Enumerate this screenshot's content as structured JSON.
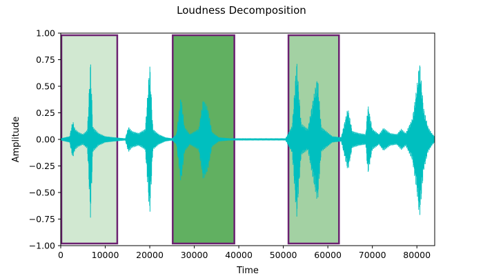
{
  "chart_data": {
    "type": "line",
    "title": "Loudness Decomposition",
    "xlabel": "Time",
    "ylabel": "Amplitude",
    "xlim": [
      0,
      84000
    ],
    "ylim": [
      -1.0,
      1.0
    ],
    "xticks": [
      0,
      10000,
      20000,
      30000,
      40000,
      50000,
      60000,
      70000,
      80000
    ],
    "xtick_labels": [
      "0",
      "10000",
      "20000",
      "30000",
      "40000",
      "50000",
      "60000",
      "70000",
      "80000"
    ],
    "yticks": [
      1.0,
      0.75,
      0.5,
      0.25,
      0.0,
      -0.25,
      -0.5,
      -0.75,
      -1.0
    ],
    "ytick_labels": [
      "1.00",
      "0.75",
      "0.50",
      "0.25",
      "0.00",
      "−0.25",
      "−0.50",
      "−0.75",
      "−1.00"
    ],
    "grid": false,
    "legend": null,
    "colors": {
      "waveform": "#00bfbf",
      "region_border": "#6b2170",
      "region_light": "#d1e8d1",
      "region_dark": "#61b061",
      "region_medium": "#a3d1a3"
    },
    "regions": [
      {
        "x_start": 0,
        "x_end": 12700,
        "y_min": -0.98,
        "y_max": 0.98,
        "shade": "light"
      },
      {
        "x_start": 25000,
        "x_end": 39000,
        "y_min": -0.98,
        "y_max": 0.98,
        "shade": "dark"
      },
      {
        "x_start": 51000,
        "x_end": 62500,
        "y_min": -0.98,
        "y_max": 0.98,
        "shade": "medium"
      }
    ],
    "waveform_envelope": [
      [
        0,
        0.01
      ],
      [
        2000,
        0.03
      ],
      [
        2700,
        0.18
      ],
      [
        3200,
        0.1
      ],
      [
        4000,
        0.07
      ],
      [
        5000,
        0.05
      ],
      [
        6000,
        0.09
      ],
      [
        6700,
        0.75
      ],
      [
        7200,
        0.12
      ],
      [
        8500,
        0.06
      ],
      [
        10000,
        0.03
      ],
      [
        12000,
        0.02
      ],
      [
        14500,
        0.01
      ],
      [
        15200,
        0.12
      ],
      [
        16000,
        0.08
      ],
      [
        17500,
        0.06
      ],
      [
        19000,
        0.1
      ],
      [
        20000,
        0.73
      ],
      [
        20700,
        0.1
      ],
      [
        22000,
        0.05
      ],
      [
        23500,
        0.02
      ],
      [
        25000,
        0.01
      ],
      [
        26000,
        0.05
      ],
      [
        27000,
        0.42
      ],
      [
        27800,
        0.12
      ],
      [
        29000,
        0.05
      ],
      [
        31000,
        0.1
      ],
      [
        32000,
        0.38
      ],
      [
        33000,
        0.3
      ],
      [
        34000,
        0.07
      ],
      [
        35500,
        0.02
      ],
      [
        38000,
        0.01
      ],
      [
        41000,
        0.01
      ],
      [
        46000,
        0.01
      ],
      [
        50500,
        0.01
      ],
      [
        52000,
        0.13
      ],
      [
        53000,
        0.75
      ],
      [
        54000,
        0.15
      ],
      [
        55500,
        0.1
      ],
      [
        57000,
        0.45
      ],
      [
        57700,
        0.6
      ],
      [
        58500,
        0.12
      ],
      [
        61000,
        0.03
      ],
      [
        63000,
        0.02
      ],
      [
        64500,
        0.3
      ],
      [
        65500,
        0.08
      ],
      [
        67000,
        0.06
      ],
      [
        68500,
        0.05
      ],
      [
        69000,
        0.33
      ],
      [
        70000,
        0.1
      ],
      [
        71500,
        0.05
      ],
      [
        72500,
        0.11
      ],
      [
        74000,
        0.06
      ],
      [
        75500,
        0.05
      ],
      [
        76500,
        0.1
      ],
      [
        77500,
        0.06
      ],
      [
        79000,
        0.2
      ],
      [
        80000,
        0.5
      ],
      [
        80600,
        0.75
      ],
      [
        81500,
        0.3
      ],
      [
        82500,
        0.12
      ],
      [
        83500,
        0.05
      ],
      [
        84000,
        0.03
      ]
    ]
  }
}
